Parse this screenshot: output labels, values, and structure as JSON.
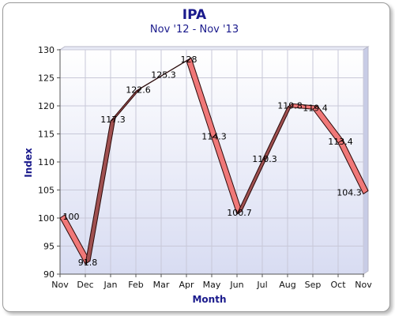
{
  "chart_data": {
    "type": "line",
    "title": "IPA",
    "subtitle": "Nov '12 - Nov '13",
    "xlabel": "Month",
    "ylabel": "Index",
    "categories": [
      "Nov",
      "Dec",
      "Jan",
      "Feb",
      "Mar",
      "Apr",
      "May",
      "Jun",
      "Jul",
      "Aug",
      "Sep",
      "Oct",
      "Nov"
    ],
    "values": [
      100,
      91.8,
      117.3,
      122.6,
      125.3,
      128,
      114.3,
      100.7,
      110.3,
      119.8,
      119.4,
      113.4,
      104.3
    ],
    "data_labels": [
      "100",
      "91.8",
      "117.3",
      "122.6",
      "125.3",
      "128",
      "114.3",
      "100.7",
      "110.3",
      "119.8",
      "119.4",
      "113.4",
      "104.3"
    ],
    "ylim": [
      90,
      130
    ],
    "yticks": [
      90,
      95,
      100,
      105,
      110,
      115,
      120,
      125,
      130
    ],
    "grid": true,
    "legend": "none",
    "colors": {
      "ribbon_fill": "#f07878",
      "ribbon_stroke": "#2a0a0a",
      "ribbon_side": "#a05050",
      "plot_bg_top": "#ffffff",
      "plot_bg_bottom": "#d8dcf2",
      "grid": "#c8c8d8",
      "title": "#1a1a8c"
    }
  }
}
